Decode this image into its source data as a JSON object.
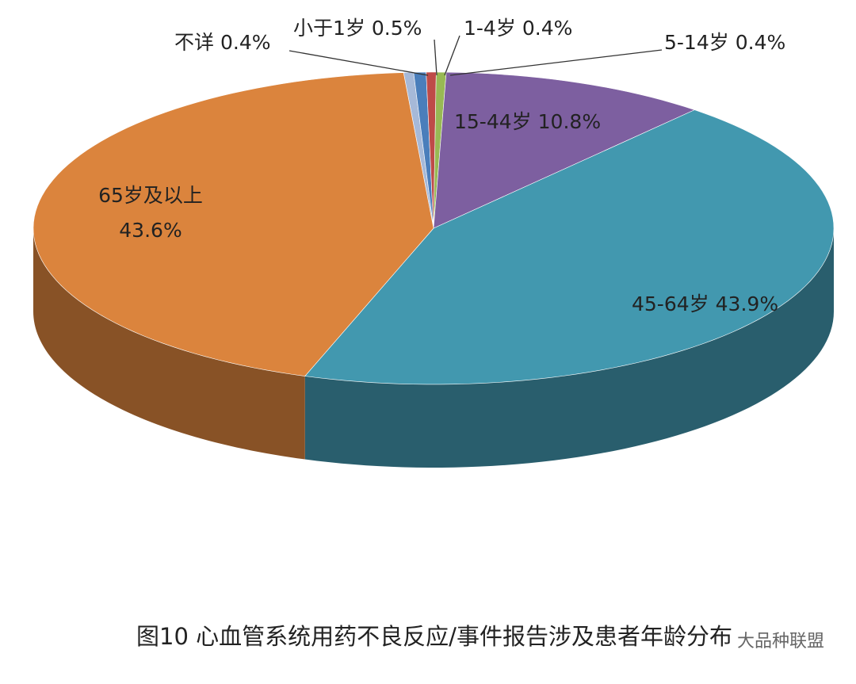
{
  "chart_data": {
    "type": "pie",
    "title": "图10 心血管系统用药不良反应/事件报告涉及患者年龄分布",
    "watermark": "大品种联盟",
    "categories": [
      "不详",
      "小于1岁",
      "1-4岁",
      "5-14岁",
      "15-44岁",
      "45-64岁",
      "65岁及以上"
    ],
    "values": [
      0.4,
      0.5,
      0.4,
      0.4,
      10.8,
      43.9,
      43.6
    ],
    "value_labels": [
      "0.4%",
      "0.5%",
      "0.4%",
      "0.4%",
      "10.8%",
      "43.9%",
      "43.6%"
    ],
    "colors": [
      "#a6b9d8",
      "#4a7ebb",
      "#be4b48",
      "#98b954",
      "#7d5fa0",
      "#4298af",
      "#db843d"
    ]
  }
}
